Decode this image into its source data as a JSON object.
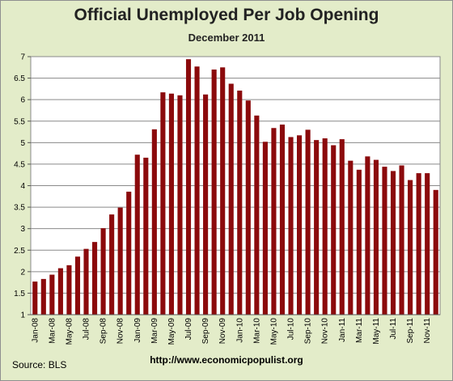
{
  "chart_data": {
    "type": "bar",
    "title": "Official Unemployed Per Job Opening",
    "subtitle": "December 2011",
    "xlabel": "",
    "ylabel": "",
    "ylim": [
      1,
      7
    ],
    "yticks": [
      1,
      1.5,
      2,
      2.5,
      3,
      3.5,
      4,
      4.5,
      5,
      5.5,
      6,
      6.5,
      7
    ],
    "ytick_labels": [
      "1",
      "1.5",
      "2",
      "2.5",
      "3",
      "3.5",
      "4",
      "4.5",
      "5",
      "5.5",
      "6",
      "6.5",
      "7"
    ],
    "grid": true,
    "bar_color": "#8b0a0c",
    "categories": [
      "Jan-08",
      "Feb-08",
      "Mar-08",
      "Apr-08",
      "May-08",
      "Jun-08",
      "Jul-08",
      "Aug-08",
      "Sep-08",
      "Oct-08",
      "Nov-08",
      "Dec-08",
      "Jan-09",
      "Feb-09",
      "Mar-09",
      "Apr-09",
      "May-09",
      "Jun-09",
      "Jul-09",
      "Aug-09",
      "Sep-09",
      "Oct-09",
      "Nov-09",
      "Dec-09",
      "Jan-10",
      "Feb-10",
      "Mar-10",
      "Apr-10",
      "May-10",
      "Jun-10",
      "Jul-10",
      "Aug-10",
      "Sep-10",
      "Oct-10",
      "Nov-10",
      "Dec-10",
      "Jan-11",
      "Feb-11",
      "Mar-11",
      "Apr-11",
      "May-11",
      "Jun-11",
      "Jul-11",
      "Aug-11",
      "Sep-11",
      "Oct-11",
      "Nov-11",
      "Dec-11"
    ],
    "values": [
      1.77,
      1.83,
      1.93,
      2.08,
      2.15,
      2.35,
      2.53,
      2.69,
      3.01,
      3.33,
      3.49,
      3.86,
      4.72,
      4.65,
      5.31,
      6.17,
      6.14,
      6.1,
      6.94,
      6.77,
      6.12,
      6.7,
      6.75,
      6.37,
      6.21,
      5.98,
      5.63,
      5.02,
      5.34,
      5.42,
      5.13,
      5.17,
      5.3,
      5.06,
      5.1,
      4.94,
      5.08,
      4.58,
      4.37,
      4.68,
      4.6,
      4.44,
      4.34,
      4.47,
      4.13,
      4.29,
      4.29,
      3.9
    ],
    "xtick_labels_shown": [
      "Jan-08",
      "Mar-08",
      "May-08",
      "Jul-08",
      "Sep-08",
      "Nov-08",
      "Jan-09",
      "Mar-09",
      "May-09",
      "Jul-09",
      "Sep-09",
      "Nov-09",
      "Jan-10",
      "Mar-10",
      "May-10",
      "Jul-10",
      "Sep-10",
      "Nov-10",
      "Jan-11",
      "Mar-11",
      "May-11",
      "Jul-11",
      "Sep-11",
      "Nov-11"
    ]
  },
  "footer": {
    "source": "Source:  BLS",
    "url": "http://www.economicpopulist.org"
  }
}
